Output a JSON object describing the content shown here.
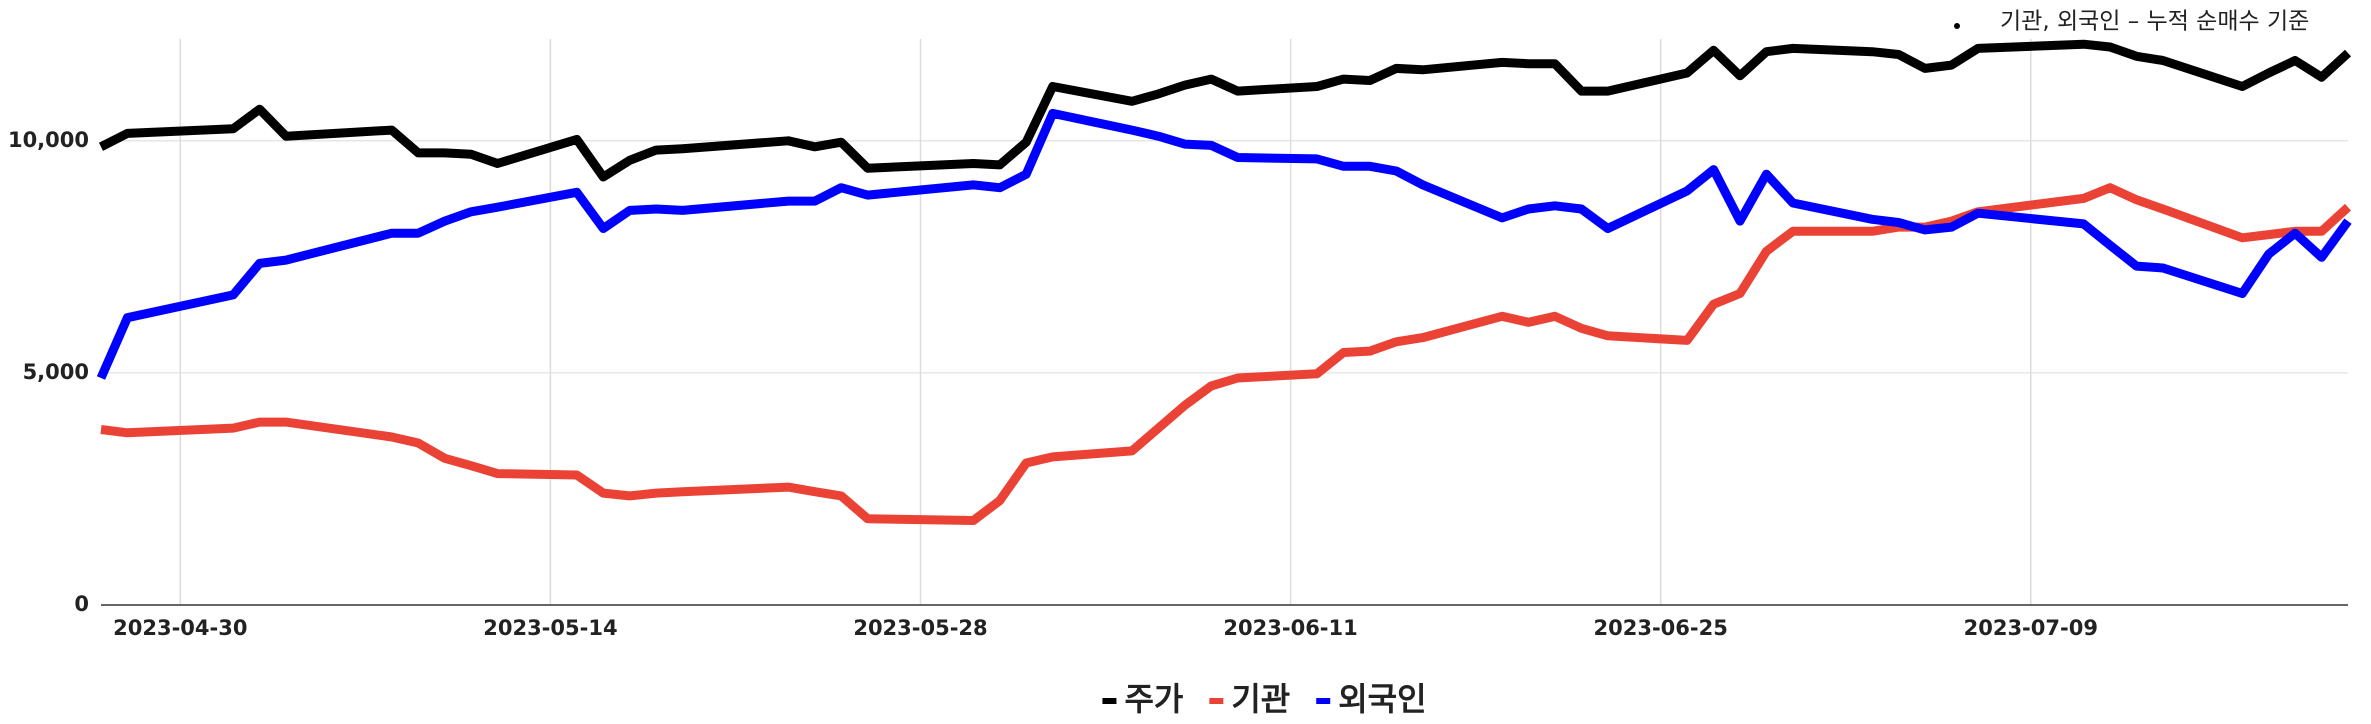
{
  "chart_data": {
    "type": "line",
    "annotation": "기관, 외국인 – 누적 순매수 기준",
    "x": [
      "2023-04-27",
      "2023-04-28",
      "2023-05-02",
      "2023-05-03",
      "2023-05-04",
      "2023-05-08",
      "2023-05-09",
      "2023-05-10",
      "2023-05-11",
      "2023-05-12",
      "2023-05-15",
      "2023-05-16",
      "2023-05-17",
      "2023-05-18",
      "2023-05-19",
      "2023-05-23",
      "2023-05-24",
      "2023-05-25",
      "2023-05-26",
      "2023-05-30",
      "2023-05-31",
      "2023-06-01",
      "2023-06-02",
      "2023-06-05",
      "2023-06-06",
      "2023-06-07",
      "2023-06-08",
      "2023-06-09",
      "2023-06-12",
      "2023-06-13",
      "2023-06-14",
      "2023-06-15",
      "2023-06-16",
      "2023-06-19",
      "2023-06-20",
      "2023-06-21",
      "2023-06-22",
      "2023-06-23",
      "2023-06-26",
      "2023-06-27",
      "2023-06-28",
      "2023-06-29",
      "2023-06-30",
      "2023-07-03",
      "2023-07-04",
      "2023-07-05",
      "2023-07-06",
      "2023-07-07",
      "2023-07-11",
      "2023-07-12",
      "2023-07-13",
      "2023-07-14",
      "2023-07-17",
      "2023-07-18",
      "2023-07-19",
      "2023-07-20",
      "2023-07-21"
    ],
    "series": [
      {
        "name": "주가",
        "color": "#000000",
        "values": [
          9870,
          10160,
          10260,
          10680,
          10100,
          10230,
          9740,
          9740,
          9710,
          9510,
          10030,
          9220,
          9580,
          9800,
          9830,
          10000,
          9870,
          9970,
          9410,
          9510,
          9480,
          9970,
          11170,
          10850,
          11010,
          11200,
          11330,
          11070,
          11170,
          11330,
          11300,
          11560,
          11530,
          11690,
          11660,
          11660,
          11070,
          11070,
          11460,
          11950,
          11400,
          11920,
          11990,
          11920,
          11860,
          11560,
          11630,
          11990,
          12080,
          12020,
          11820,
          11730,
          11170,
          11460,
          11730,
          11370,
          11890
        ]
      },
      {
        "name": "기관",
        "color": "#ea4335",
        "values": [
          3780,
          3710,
          3810,
          3940,
          3940,
          3620,
          3490,
          3160,
          3000,
          2830,
          2800,
          2410,
          2350,
          2410,
          2440,
          2540,
          2440,
          2350,
          1860,
          1820,
          2250,
          3060,
          3190,
          3320,
          3810,
          4300,
          4720,
          4890,
          4980,
          5440,
          5470,
          5670,
          5760,
          6220,
          6090,
          6220,
          5960,
          5800,
          5700,
          6480,
          6710,
          7620,
          8050,
          8050,
          8140,
          8140,
          8270,
          8470,
          8760,
          8990,
          8730,
          8530,
          7910,
          7980,
          8050,
          8050,
          8570
        ]
      },
      {
        "name": "외국인",
        "color": "#0000ff",
        "values": [
          4890,
          6190,
          6680,
          7360,
          7430,
          8010,
          8010,
          8270,
          8470,
          8570,
          8890,
          8110,
          8500,
          8530,
          8500,
          8700,
          8700,
          8990,
          8830,
          9050,
          8990,
          9280,
          10590,
          10230,
          10100,
          9930,
          9900,
          9640,
          9610,
          9450,
          9450,
          9350,
          9050,
          8340,
          8530,
          8600,
          8530,
          8110,
          8920,
          9380,
          8270,
          9280,
          8660,
          8310,
          8240,
          8080,
          8140,
          8440,
          8210,
          7750,
          7300,
          7260,
          6710,
          7560,
          8010,
          7490,
          8270
        ]
      }
    ],
    "xlim": [
      "2023-04-27",
      "2023-07-21"
    ],
    "xticks": [
      "2023-04-30",
      "2023-05-14",
      "2023-05-28",
      "2023-06-11",
      "2023-06-25",
      "2023-07-09"
    ],
    "ylim": [
      0,
      12150
    ],
    "yticks": [
      0,
      {
        "value": 5000,
        "label": "5,000"
      },
      {
        "value": 10000,
        "label": "10,000"
      }
    ],
    "grid": true,
    "legend": "bottom"
  }
}
